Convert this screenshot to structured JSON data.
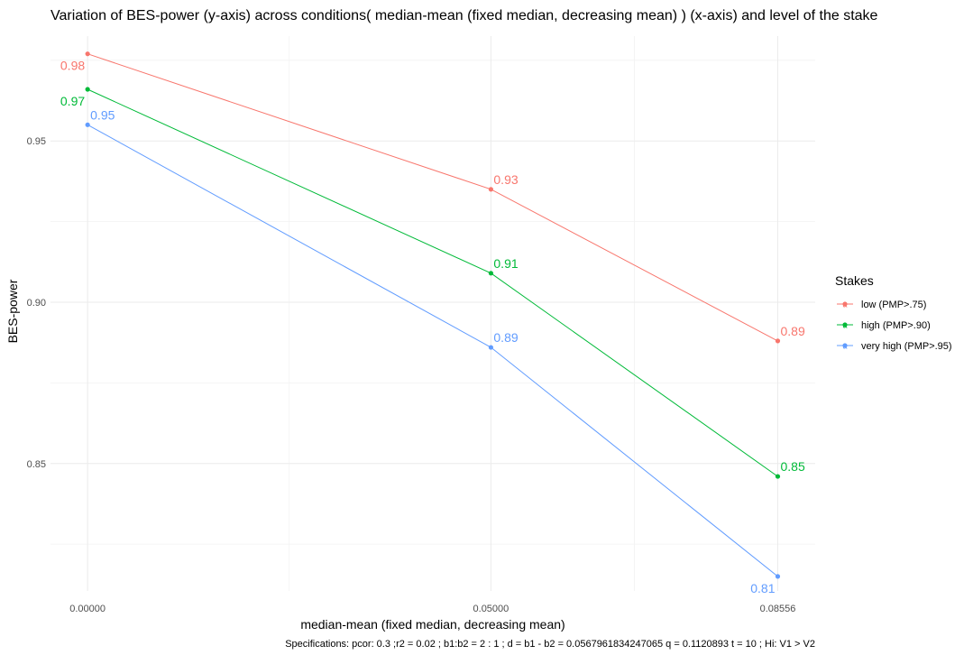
{
  "chart_data": {
    "type": "line",
    "title": "Variation of BES-power (y-axis) across conditions( median-mean (fixed median, decreasing mean) ) (x-axis) and level of the stake",
    "xlabel": "median-mean (fixed median, decreasing mean)",
    "ylabel": "BES-power",
    "caption": "Specifications: pcor: 0.3 ;r2 = 0.02 ; b1:b2 =  2 : 1 ; d = b1 - b2 = 0.0567961834247065 q = 0.1120893 t = 10 ; Hi: V1 > V2",
    "x_ticks": [
      "0.00000",
      "0.05000",
      "0.08556"
    ],
    "x": [
      0.0,
      0.05,
      0.08556
    ],
    "y_ticks": [
      0.85,
      0.9,
      0.95
    ],
    "y_tick_labels": [
      "0.85",
      "0.90",
      "0.95"
    ],
    "xlim": [
      -0.0046,
      0.0902
    ],
    "ylim": [
      0.8105,
      0.9825
    ],
    "grid": true,
    "legend": {
      "title": "Stakes",
      "position": "right"
    },
    "series": [
      {
        "name": "low (PMP>.75)",
        "color": "#F8766D",
        "values": [
          0.977,
          0.935,
          0.888
        ],
        "labels": [
          "0.98",
          "0.93",
          "0.89"
        ],
        "label_pos": [
          "below-left",
          "above-right",
          "above-right"
        ]
      },
      {
        "name": "high (PMP>.90)",
        "color": "#00BA38",
        "values": [
          0.966,
          0.909,
          0.846
        ],
        "labels": [
          "0.97",
          "0.91",
          "0.85"
        ],
        "label_pos": [
          "below-left",
          "above-right",
          "above-right"
        ]
      },
      {
        "name": "very high (PMP>.95)",
        "color": "#619CFF",
        "values": [
          0.955,
          0.886,
          0.815
        ],
        "labels": [
          "0.95",
          "0.89",
          "0.81"
        ],
        "label_pos": [
          "above-right",
          "above-right",
          "below-left"
        ]
      }
    ]
  }
}
